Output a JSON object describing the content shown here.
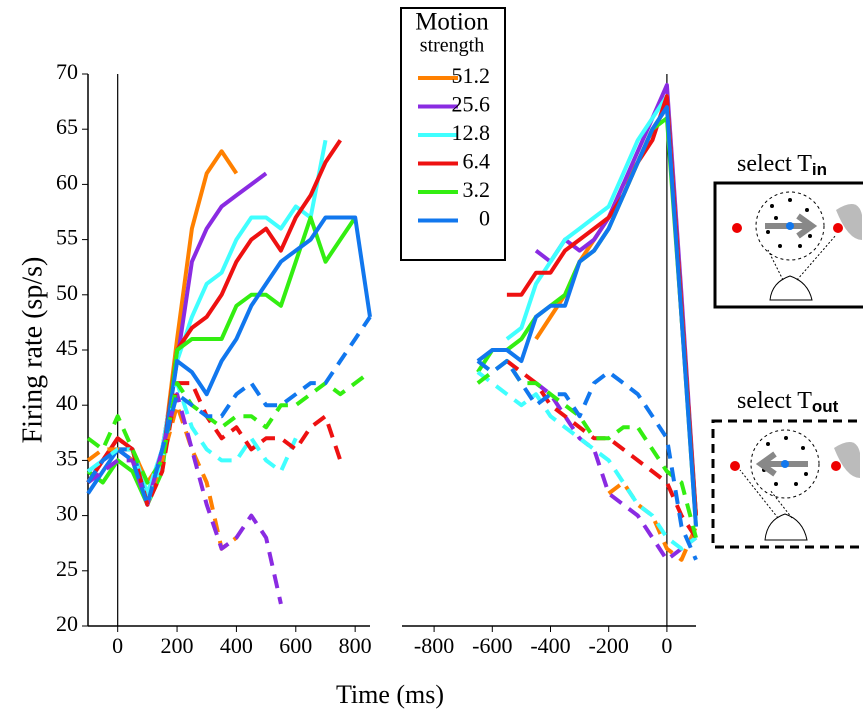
{
  "chart_data": [
    {
      "type": "line",
      "ylabel": "Firing rate (sp/s)",
      "xlabel": "Time (ms)",
      "legend_title": "Motion",
      "legend_subtitle": "strength",
      "x": [
        -100,
        -50,
        0,
        50,
        100,
        150,
        200,
        250,
        300,
        350,
        400,
        450,
        500,
        550,
        600,
        650,
        700,
        750,
        800,
        850
      ],
      "xlim": [
        -100,
        850
      ],
      "ylim": [
        20,
        70
      ],
      "xticks": [
        0,
        200,
        400,
        600,
        800
      ],
      "yticks": [
        20,
        25,
        30,
        35,
        40,
        45,
        50,
        55,
        60,
        65,
        70
      ],
      "yaxis": true,
      "vline": 0,
      "series": [
        {
          "name": "51.2",
          "color": "#ff8000",
          "dash": false,
          "values": [
            33,
            35,
            36,
            36,
            33,
            35,
            46,
            56,
            61,
            63,
            61,
            null,
            null,
            null,
            null,
            null,
            null,
            null,
            null,
            null
          ]
        },
        {
          "name": "25.6",
          "color": "#8a2be2",
          "dash": false,
          "values": [
            33,
            35,
            36,
            35,
            31,
            36,
            44,
            53,
            56,
            58,
            59,
            60,
            61,
            null,
            null,
            null,
            null,
            null,
            null,
            null
          ]
        },
        {
          "name": "12.8",
          "color": "#40ffff",
          "dash": false,
          "values": [
            34,
            35,
            37,
            36,
            32,
            36,
            44,
            48,
            51,
            52,
            55,
            57,
            57,
            56,
            58,
            57,
            64,
            null,
            null,
            null
          ]
        },
        {
          "name": "6.4",
          "color": "#ee1111",
          "dash": false,
          "values": [
            33,
            35,
            37,
            36,
            31,
            35,
            45,
            47,
            48,
            50,
            53,
            55,
            56,
            54,
            57,
            59,
            62,
            64,
            null,
            null
          ]
        },
        {
          "name": "3.2",
          "color": "#33ee11",
          "dash": false,
          "values": [
            34,
            33,
            35,
            34,
            31,
            34,
            45,
            46,
            46,
            46,
            49,
            50,
            50,
            49,
            53,
            57,
            53,
            55,
            57,
            null
          ]
        },
        {
          "name": "0",
          "color": "#1177ee",
          "dash": false,
          "values": [
            32,
            34,
            36,
            36,
            31,
            35,
            44,
            43,
            41,
            44,
            46,
            49,
            51,
            53,
            54,
            55,
            57,
            57,
            57,
            48
          ]
        },
        {
          "color": "#ff8000",
          "dash": true,
          "values": [
            35,
            36,
            36,
            35,
            31,
            35,
            40,
            36,
            33,
            27,
            28,
            null,
            null,
            null,
            null,
            null,
            null,
            null,
            null,
            null
          ]
        },
        {
          "color": "#8a2be2",
          "dash": true,
          "values": [
            33,
            34,
            35,
            35,
            31,
            36,
            41,
            36,
            31,
            27,
            28,
            30,
            28,
            22,
            null,
            null,
            null,
            null,
            null,
            null
          ]
        },
        {
          "color": "#40ffff",
          "dash": true,
          "values": [
            34,
            35,
            36,
            36,
            31,
            35,
            42,
            38,
            36,
            35,
            35,
            37,
            35,
            34,
            37,
            null,
            null,
            null,
            null,
            null
          ]
        },
        {
          "color": "#ee1111",
          "dash": true,
          "values": [
            33,
            35,
            37,
            36,
            31,
            34,
            42,
            42,
            39,
            37,
            38,
            36,
            37,
            37,
            36,
            38,
            39,
            35,
            null,
            null
          ]
        },
        {
          "color": "#33ee11",
          "dash": true,
          "values": [
            37,
            36,
            39,
            36,
            33,
            35,
            42,
            40,
            39,
            38,
            39,
            39,
            38,
            40,
            40,
            41,
            42,
            41,
            42,
            43
          ]
        },
        {
          "color": "#1177ee",
          "dash": true,
          "values": [
            33,
            35,
            36,
            35,
            31,
            36,
            41,
            40,
            39,
            39,
            41,
            42,
            40,
            40,
            41,
            42,
            42,
            44,
            46,
            48
          ]
        }
      ]
    },
    {
      "type": "line",
      "x": [
        -650,
        -600,
        -550,
        -500,
        -450,
        -400,
        -350,
        -300,
        -250,
        -200,
        -150,
        -100,
        -50,
        0,
        50,
        100
      ],
      "xlim": [
        -900,
        100
      ],
      "ylim": [
        20,
        70
      ],
      "xticks": [
        -800,
        -600,
        -400,
        -200,
        0
      ],
      "yaxis": false,
      "vline": 0,
      "annotations": [
        {
          "text": "select T",
          "sub": "in"
        },
        {
          "text": "select T",
          "sub": "out"
        }
      ],
      "series": [
        {
          "color": "#ff8000",
          "dash": false,
          "values": [
            null,
            null,
            null,
            null,
            46,
            48,
            50,
            53,
            55,
            57,
            60,
            62,
            65,
            67,
            48,
            30
          ]
        },
        {
          "color": "#8a2be2",
          "dash": false,
          "values": [
            null,
            null,
            null,
            null,
            54,
            53,
            55,
            54,
            55,
            57,
            60,
            63,
            66,
            69,
            50,
            30
          ]
        },
        {
          "color": "#40ffff",
          "dash": false,
          "values": [
            null,
            null,
            46,
            47,
            51,
            53,
            55,
            56,
            57,
            58,
            61,
            64,
            66,
            68,
            49,
            30
          ]
        },
        {
          "color": "#ee1111",
          "dash": false,
          "values": [
            null,
            null,
            50,
            50,
            52,
            52,
            54,
            55,
            56,
            57,
            59,
            62,
            64,
            68,
            49,
            30
          ]
        },
        {
          "color": "#33ee11",
          "dash": false,
          "values": [
            43,
            45,
            45,
            46,
            48,
            49,
            50,
            53,
            54,
            56,
            59,
            62,
            65,
            66,
            48,
            29
          ]
        },
        {
          "color": "#1177ee",
          "dash": false,
          "values": [
            44,
            45,
            45,
            44,
            48,
            49,
            49,
            53,
            54,
            56,
            59,
            62,
            65,
            67,
            48,
            29
          ]
        },
        {
          "color": "#ff8000",
          "dash": true,
          "values": [
            null,
            null,
            null,
            null,
            null,
            null,
            null,
            null,
            null,
            32,
            33,
            31,
            30,
            27,
            26,
            29
          ]
        },
        {
          "color": "#8a2be2",
          "dash": true,
          "values": [
            null,
            null,
            null,
            null,
            42,
            41,
            39,
            37,
            36,
            32,
            31,
            30,
            28,
            26,
            27,
            28
          ]
        },
        {
          "color": "#40ffff",
          "dash": true,
          "values": [
            43,
            42,
            41,
            40,
            41,
            39,
            38,
            37,
            36,
            35,
            33,
            31,
            30,
            28,
            27,
            28
          ]
        },
        {
          "color": "#ee1111",
          "dash": true,
          "values": [
            null,
            null,
            44,
            43,
            42,
            40,
            39,
            38,
            37,
            37,
            36,
            35,
            34,
            33,
            30,
            28
          ]
        },
        {
          "color": "#33ee11",
          "dash": true,
          "values": [
            42,
            43,
            44,
            42,
            42,
            41,
            40,
            39,
            37,
            37,
            38,
            38,
            36,
            34,
            33,
            28
          ]
        },
        {
          "color": "#1177ee",
          "dash": true,
          "values": [
            44,
            43,
            44,
            42,
            40,
            41,
            41,
            39,
            42,
            43,
            42,
            41,
            39,
            37,
            29,
            26
          ]
        }
      ]
    }
  ]
}
